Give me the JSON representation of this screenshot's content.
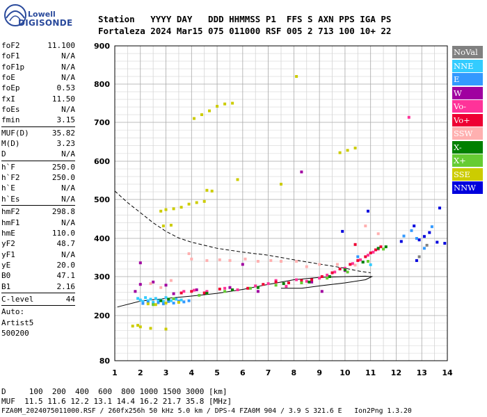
{
  "logo": {
    "line1": "Lowell",
    "line2": "DIGISONDE"
  },
  "header": {
    "line1": "Station   YYYY DAY   DDD HHMMSS P1  FFS S AXN PPS IGA PS",
    "line2": "Fortaleza 2024 Mar15 075 011000 RSF 005 2 713 100 10+ 22"
  },
  "params": [
    {
      "label": "foF2",
      "value": "11.100"
    },
    {
      "label": "foF1",
      "value": "N/A"
    },
    {
      "label": "foF1p",
      "value": "N/A"
    },
    {
      "label": "foE",
      "value": "N/A"
    },
    {
      "label": "foEp",
      "value": "0.53"
    },
    {
      "label": "fxI",
      "value": "11.50"
    },
    {
      "label": "foEs",
      "value": "N/A"
    },
    {
      "label": "fmin",
      "value": "3.15"
    },
    {
      "sep": true
    },
    {
      "label": "MUF(D)",
      "value": "35.82"
    },
    {
      "label": "M(D)",
      "value": "3.23"
    },
    {
      "label": "D",
      "value": "N/A"
    },
    {
      "sep": true
    },
    {
      "label": "h`F",
      "value": "250.0"
    },
    {
      "label": "h`F2",
      "value": "250.0"
    },
    {
      "label": "h`E",
      "value": "N/A"
    },
    {
      "label": "h`Es",
      "value": "N/A"
    },
    {
      "sep": true
    },
    {
      "label": "hmF2",
      "value": "298.8"
    },
    {
      "label": "hmF1",
      "value": "N/A"
    },
    {
      "label": "hmE",
      "value": "110.0"
    },
    {
      "label": "yF2",
      "value": "48.7"
    },
    {
      "label": "yF1",
      "value": "N/A"
    },
    {
      "label": "yE",
      "value": "20.0"
    },
    {
      "label": "B0",
      "value": "47.1"
    },
    {
      "label": "B1",
      "value": "2.16"
    },
    {
      "sep": true
    },
    {
      "label": "C-level",
      "value": "44"
    },
    {
      "sep": true
    },
    {
      "text": "Auto:"
    },
    {
      "text": "Artist5"
    },
    {
      "text": "500200"
    }
  ],
  "footer": {
    "d_row": "D     100  200  400  600  800 1000 1500 3000 [km]",
    "muf_row": "MUF  11.5 11.6 12.2 13.1 14.4 16.2 21.7 35.8 [MHz]",
    "file_row": "FZA0M_2024075011000.RSF / 260fx256h 50 kHz 5.0 km / DPS-4 FZA0M 904 / 3.9 S 321.6 E   Ion2Png 1.3.20"
  },
  "legend": [
    {
      "label": "NoVal",
      "color": "#808080"
    },
    {
      "label": "NNE",
      "color": "#33ccff"
    },
    {
      "label": "E",
      "color": "#3399ff"
    },
    {
      "label": "W",
      "color": "#a000a0"
    },
    {
      "label": "Vo-",
      "color": "#ff3399"
    },
    {
      "label": "Vo+",
      "color": "#ee0033"
    },
    {
      "label": "SSW",
      "color": "#ffb0b0"
    },
    {
      "label": "X-",
      "color": "#008000"
    },
    {
      "label": "X+",
      "color": "#66cc33"
    },
    {
      "label": "SSE",
      "color": "#cccc00"
    },
    {
      "label": "NNW",
      "color": "#0000dd"
    }
  ],
  "chart_data": {
    "type": "scatter",
    "xlim": [
      1,
      14
    ],
    "ylim": [
      80,
      900
    ],
    "x_ticks": [
      "1",
      "2",
      "3",
      "4",
      "5",
      "6",
      "7",
      "8",
      "9",
      "10",
      "11",
      "12",
      "13",
      "14"
    ],
    "y_ticks": [
      "80",
      "200",
      "300",
      "400",
      "500",
      "600",
      "700",
      "800",
      "900"
    ],
    "grid": true,
    "profile_solid": [
      [
        1.1,
        222
      ],
      [
        2,
        237
      ],
      [
        3,
        244
      ],
      [
        4,
        250
      ],
      [
        5,
        257
      ],
      [
        6,
        267
      ],
      [
        7,
        280
      ],
      [
        8,
        292
      ],
      [
        9,
        298
      ],
      [
        10,
        300
      ],
      [
        10.8,
        301
      ],
      [
        11.05,
        300
      ],
      [
        10.8,
        292
      ],
      [
        10,
        284
      ],
      [
        9,
        276
      ],
      [
        8.3,
        270
      ],
      [
        7.5,
        270
      ]
    ],
    "profile_dashed": [
      [
        1,
        522
      ],
      [
        1.5,
        492
      ],
      [
        2,
        466
      ],
      [
        2.5,
        440
      ],
      [
        3,
        418
      ],
      [
        3.5,
        401
      ],
      [
        4,
        390
      ],
      [
        5,
        374
      ],
      [
        6,
        364
      ],
      [
        7,
        356
      ],
      [
        8,
        344
      ],
      [
        9,
        333
      ],
      [
        10,
        322
      ],
      [
        10.5,
        315
      ],
      [
        11,
        310
      ]
    ],
    "series": [
      {
        "name": "NNE",
        "color": "#33ccff",
        "points": [
          [
            1.9,
            244
          ],
          [
            2.0,
            240
          ],
          [
            2.1,
            236
          ],
          [
            2.2,
            246
          ],
          [
            2.3,
            238
          ],
          [
            2.4,
            242
          ],
          [
            2.5,
            234
          ],
          [
            2.6,
            244
          ],
          [
            2.7,
            238
          ],
          [
            2.8,
            240
          ],
          [
            2.9,
            236
          ],
          [
            3.0,
            246
          ],
          [
            3.2,
            238
          ],
          [
            3.4,
            242
          ],
          [
            3.6,
            240
          ],
          [
            11.0,
            331
          ],
          [
            10.7,
            338
          ]
        ]
      },
      {
        "name": "E",
        "color": "#3399ff",
        "points": [
          [
            2.1,
            231
          ],
          [
            2.3,
            234
          ],
          [
            2.5,
            229
          ],
          [
            2.7,
            233
          ],
          [
            2.9,
            230
          ],
          [
            3.1,
            236
          ],
          [
            3.3,
            232
          ],
          [
            3.5,
            237
          ],
          [
            3.7,
            235
          ],
          [
            3.9,
            238
          ],
          [
            10.5,
            352
          ],
          [
            12.3,
            406
          ],
          [
            12.6,
            420
          ],
          [
            13.4,
            430
          ],
          [
            13.1,
            374
          ],
          [
            12.8,
            400
          ]
        ]
      },
      {
        "name": "W",
        "color": "#a000a0",
        "points": [
          [
            1.8,
            262
          ],
          [
            2.0,
            280
          ],
          [
            2.5,
            286
          ],
          [
            3.0,
            278
          ],
          [
            3.3,
            256
          ],
          [
            4.2,
            266
          ],
          [
            5.5,
            272
          ],
          [
            6.0,
            332
          ],
          [
            6.6,
            262
          ],
          [
            8.3,
            572
          ],
          [
            9.1,
            262
          ],
          [
            10.0,
            316
          ],
          [
            8.7,
            286
          ],
          [
            2.0,
            336
          ]
        ]
      },
      {
        "name": "Vo-",
        "color": "#ff3399",
        "points": [
          [
            3.7,
            262
          ],
          [
            4.1,
            265
          ],
          [
            4.6,
            262
          ],
          [
            5.3,
            270
          ],
          [
            5.8,
            266
          ],
          [
            6.5,
            276
          ],
          [
            7.0,
            282
          ],
          [
            7.3,
            290
          ],
          [
            7.7,
            275
          ],
          [
            8.1,
            292
          ],
          [
            8.5,
            288
          ],
          [
            9.0,
            296
          ],
          [
            9.3,
            304
          ],
          [
            9.6,
            312
          ],
          [
            10.0,
            322
          ],
          [
            10.3,
            334
          ],
          [
            10.6,
            344
          ],
          [
            10.9,
            356
          ],
          [
            11.1,
            364
          ],
          [
            11.3,
            372
          ],
          [
            12.5,
            713
          ]
        ]
      },
      {
        "name": "Vo+",
        "color": "#ee0033",
        "points": [
          [
            3.6,
            258
          ],
          [
            4.0,
            262
          ],
          [
            4.5,
            258
          ],
          [
            5.1,
            268
          ],
          [
            5.6,
            266
          ],
          [
            6.2,
            270
          ],
          [
            6.8,
            280
          ],
          [
            7.3,
            286
          ],
          [
            7.8,
            284
          ],
          [
            8.3,
            290
          ],
          [
            8.7,
            292
          ],
          [
            9.1,
            300
          ],
          [
            9.5,
            310
          ],
          [
            9.8,
            320
          ],
          [
            10.2,
            332
          ],
          [
            10.5,
            342
          ],
          [
            10.8,
            352
          ],
          [
            11.0,
            362
          ],
          [
            11.2,
            370
          ],
          [
            11.4,
            378
          ],
          [
            10.4,
            384
          ]
        ]
      },
      {
        "name": "SSW",
        "color": "#ffb0b0",
        "points": [
          [
            2.4,
            282
          ],
          [
            2.8,
            272
          ],
          [
            3.2,
            290
          ],
          [
            4.0,
            346
          ],
          [
            4.6,
            342
          ],
          [
            5.1,
            344
          ],
          [
            5.5,
            342
          ],
          [
            6.1,
            346
          ],
          [
            6.6,
            340
          ],
          [
            7.1,
            342
          ],
          [
            7.5,
            340
          ],
          [
            8.1,
            340
          ],
          [
            8.5,
            326
          ],
          [
            9.0,
            332
          ],
          [
            9.7,
            332
          ],
          [
            10.4,
            330
          ],
          [
            10.8,
            432
          ],
          [
            11.3,
            412
          ],
          [
            3.9,
            360
          ]
        ]
      },
      {
        "name": "X-",
        "color": "#008000",
        "points": [
          [
            2.8,
            238
          ],
          [
            3.1,
            242
          ],
          [
            4.6,
            257
          ],
          [
            5.6,
            266
          ],
          [
            6.6,
            272
          ],
          [
            7.6,
            282
          ],
          [
            8.6,
            286
          ],
          [
            9.4,
            300
          ],
          [
            10.0,
            318
          ],
          [
            10.7,
            338
          ],
          [
            11.3,
            374
          ],
          [
            11.6,
            378
          ]
        ]
      },
      {
        "name": "X+",
        "color": "#66cc33",
        "points": [
          [
            2.5,
            228
          ],
          [
            3.3,
            243
          ],
          [
            4.3,
            252
          ],
          [
            5.3,
            262
          ],
          [
            6.3,
            270
          ],
          [
            7.3,
            278
          ],
          [
            8.3,
            284
          ],
          [
            9.3,
            296
          ],
          [
            10.1,
            312
          ],
          [
            10.9,
            340
          ],
          [
            11.5,
            372
          ]
        ]
      },
      {
        "name": "SSE",
        "color": "#cccc00",
        "points": [
          [
            1.7,
            172
          ],
          [
            1.9,
            174
          ],
          [
            2.0,
            170
          ],
          [
            2.3,
            230
          ],
          [
            2.6,
            228
          ],
          [
            3.0,
            232
          ],
          [
            3.5,
            234
          ],
          [
            2.8,
            470
          ],
          [
            3.0,
            474
          ],
          [
            3.3,
            476
          ],
          [
            3.6,
            480
          ],
          [
            3.9,
            488
          ],
          [
            4.2,
            492
          ],
          [
            4.5,
            495
          ],
          [
            2.9,
            432
          ],
          [
            3.2,
            434
          ],
          [
            4.1,
            710
          ],
          [
            4.4,
            720
          ],
          [
            4.7,
            730
          ],
          [
            5.0,
            742
          ],
          [
            5.3,
            748
          ],
          [
            5.6,
            750
          ],
          [
            9.8,
            622
          ],
          [
            10.1,
            628
          ],
          [
            10.4,
            634
          ],
          [
            8.1,
            820
          ],
          [
            7.5,
            540
          ],
          [
            5.8,
            552
          ],
          [
            4.6,
            524
          ],
          [
            4.8,
            522
          ],
          [
            3.0,
            164
          ],
          [
            2.4,
            166
          ]
        ]
      },
      {
        "name": "NNW",
        "color": "#0000dd",
        "points": [
          [
            9.9,
            418
          ],
          [
            10.9,
            470
          ],
          [
            12.7,
            432
          ],
          [
            12.9,
            396
          ],
          [
            12.8,
            342
          ],
          [
            13.3,
            415
          ],
          [
            13.6,
            390
          ],
          [
            13.9,
            387
          ],
          [
            12.2,
            392
          ],
          [
            13.1,
            405
          ],
          [
            13.7,
            478
          ]
        ]
      },
      {
        "name": "NoVal",
        "color": "#808080",
        "points": [
          [
            13.2,
            382
          ],
          [
            12.9,
            352
          ]
        ]
      }
    ]
  }
}
